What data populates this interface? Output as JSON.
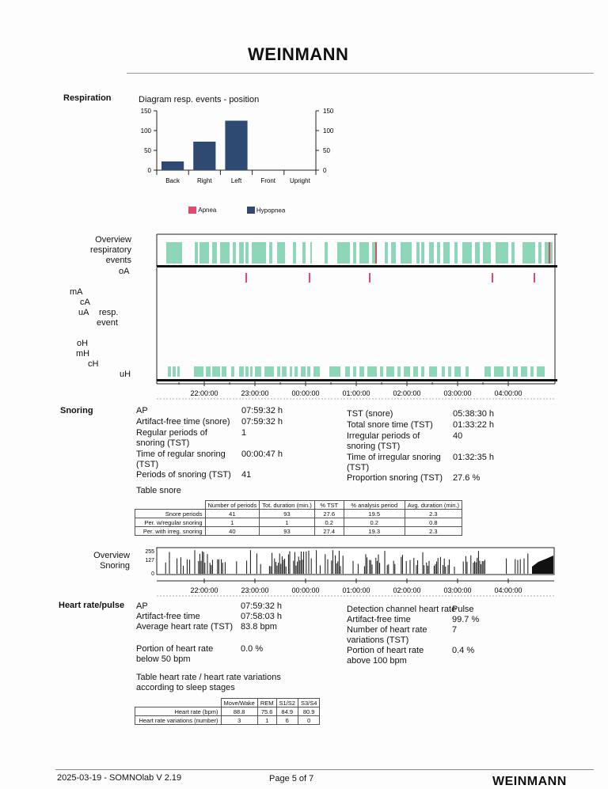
{
  "header": {
    "logo_text": "WEINMANN"
  },
  "respiration": {
    "section_title": "Respiration",
    "diagram": {
      "title": "Diagram resp. events - position",
      "y_ticks": [
        "150",
        "100",
        "50",
        "0"
      ],
      "legend": [
        {
          "label": "Apnea",
          "color": "#e24a6b"
        },
        {
          "label": "Hypopnea",
          "color": "#2f4a72"
        }
      ]
    },
    "overview": {
      "label_line1": "Overview",
      "label_line2": "respiratory",
      "label_line3": "events",
      "rows": [
        "oA",
        "mA",
        "cA",
        "uA",
        "oH",
        "mH",
        "cH",
        "uH"
      ],
      "event_label_line1": "resp.",
      "event_label_line2": "event",
      "time_ticks": [
        "22:00:00",
        "23:00:00",
        "00:00:00",
        "01:00:00",
        "02:00:00",
        "03:00:00",
        "04:00:00"
      ]
    }
  },
  "chart_data": {
    "type": "bar",
    "title": "Diagram resp. events - position",
    "categories": [
      "Back",
      "Right",
      "Left",
      "Front",
      "Upright"
    ],
    "series": [
      {
        "name": "Apnea",
        "values": [
          0,
          0,
          0,
          0,
          0
        ],
        "color": "#e24a6b"
      },
      {
        "name": "Hypopnea",
        "values": [
          22,
          72,
          125,
          0,
          0
        ],
        "color": "#2f4a72"
      }
    ],
    "ylim": [
      0,
      150
    ],
    "legend_position": "bottom",
    "grid": false
  },
  "snoring": {
    "section_title": "Snoring",
    "left": [
      {
        "k": "AP",
        "v": "07:59:32 h"
      },
      {
        "k": "Artifact-free time (snore)",
        "v": "07:59:32 h"
      },
      {
        "k": "Regular periods of snoring (TST)",
        "v": "1"
      },
      {
        "k": "Time of regular snoring (TST)",
        "v": "00:00:47 h"
      },
      {
        "k": "Periods of snoring (TST)",
        "v": "41"
      }
    ],
    "right": [
      {
        "k": "TST (snore)",
        "v": "05:38:30 h"
      },
      {
        "k": "Total snore time (TST)",
        "v": "01:33:22 h"
      },
      {
        "k": "Irregular periods of snoring (TST)",
        "v": "40"
      },
      {
        "k": "Time of irregular snoring (TST)",
        "v": "01:32:35 h"
      },
      {
        "k": "Proportion snoring (TST)",
        "v": "27.6 %"
      }
    ],
    "table_title": "Table snore",
    "table": {
      "headers": [
        "Number of periods",
        "Tot. duration (min.)",
        "% TST",
        "% analysis period",
        "Avg. duration (min.)"
      ],
      "rows": [
        {
          "label": "Snore periods",
          "cells": [
            "41",
            "93",
            "27.6",
            "19.5",
            "2.3"
          ]
        },
        {
          "label": "Per. w/regular snoring",
          "cells": [
            "1",
            "1",
            "0.2",
            "0.2",
            "0.8"
          ]
        },
        {
          "label": "Per. with irreg. snoring",
          "cells": [
            "40",
            "93",
            "27.4",
            "19.3",
            "2.3"
          ]
        }
      ]
    },
    "overview": {
      "label_line1": "Overview",
      "label_line2": "Snoring",
      "y_ticks": [
        "255",
        "127",
        "0"
      ],
      "time_ticks": [
        "22:00:00",
        "23:00:00",
        "00:00:00",
        "01:00:00",
        "02:00:00",
        "03:00:00",
        "04:00:00"
      ]
    }
  },
  "heart": {
    "section_title": "Heart rate/pulse",
    "left": [
      {
        "k": "AP",
        "v": "07:59:32 h"
      },
      {
        "k": "Artifact-free time",
        "v": "07:58:03 h"
      },
      {
        "k": "Average heart rate (TST)",
        "v": "83.8 bpm"
      },
      {
        "k": "Portion of heart rate below 50 bpm",
        "v": "0.0 %"
      }
    ],
    "right": [
      {
        "k": "Detection channel heart rate",
        "v": "Pulse"
      },
      {
        "k": "Artifact-free time",
        "v": "99.7 %"
      },
      {
        "k": "Number of heart rate variations (TST)",
        "v": "7"
      },
      {
        "k": "Portion of heart rate above 100 bpm",
        "v": "0.4 %"
      }
    ],
    "table_title": "Table heart rate  / heart rate variations according to sleep stages",
    "table": {
      "headers": [
        "Move/Wake",
        "REM",
        "S1/S2",
        "S3/S4"
      ],
      "rows": [
        {
          "label": "Heart rate (bpm)",
          "cells": [
            "88.8",
            "75.6",
            "84.9",
            "80.9"
          ]
        },
        {
          "label": "Heart rate variations (number)",
          "cells": [
            "3",
            "1",
            "6",
            "0"
          ]
        }
      ]
    }
  },
  "footer": {
    "left": "2025-03-19 - SOMNOlab V 2.19",
    "center": "Page 5 of 7",
    "logo_text": "WEINMANN"
  }
}
